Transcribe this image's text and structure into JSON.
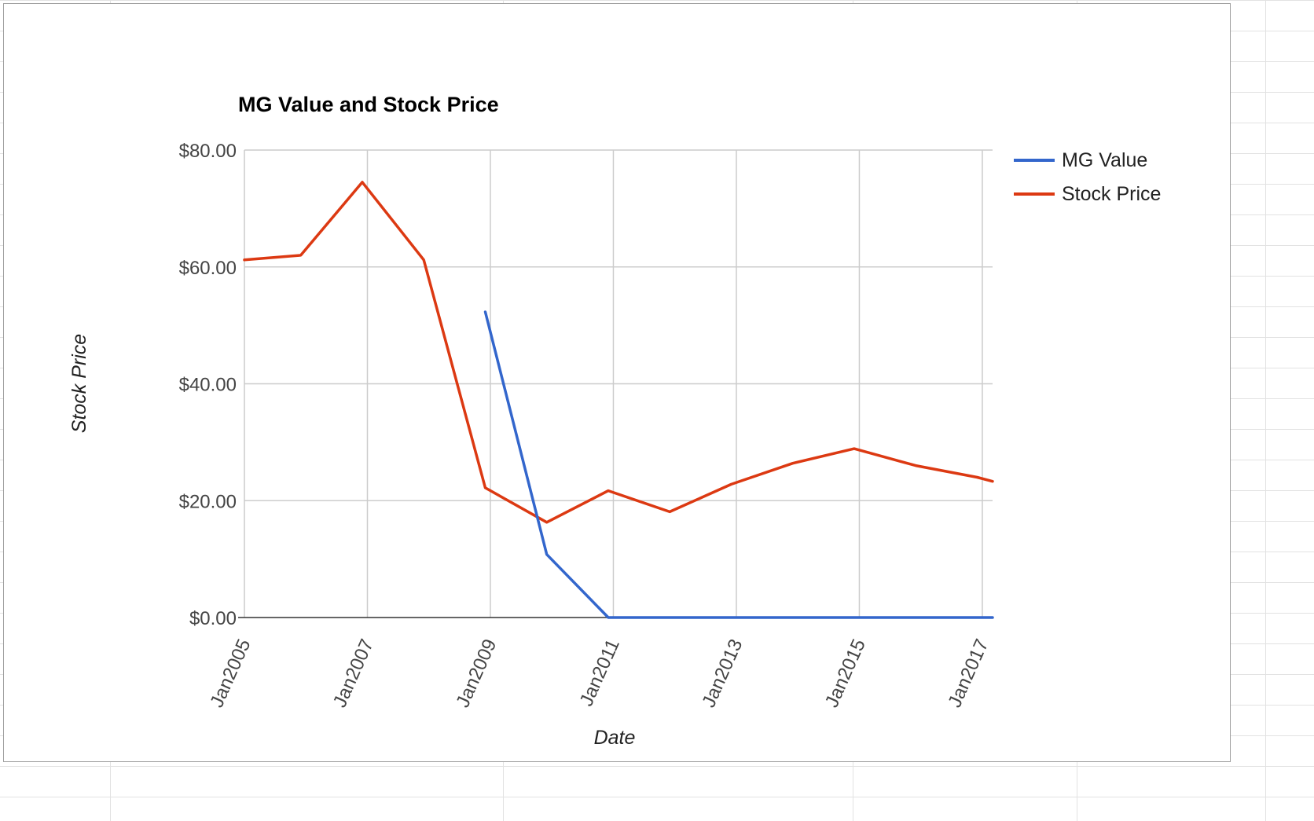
{
  "chart_data": {
    "type": "line",
    "title": "MG Value and Stock Price",
    "xlabel": "Date",
    "ylabel": "Stock Price",
    "ylim": [
      0,
      80
    ],
    "yticks": [
      0,
      20,
      40,
      60,
      80
    ],
    "ytick_labels": [
      "$0.00",
      "$20.00",
      "$40.00",
      "$60.00",
      "$80.00"
    ],
    "xlim": [
      "2005-01",
      "2017-03"
    ],
    "xticks": [
      "2005-01",
      "2007-01",
      "2009-01",
      "2011-01",
      "2013-01",
      "2015-01",
      "2017-01"
    ],
    "xtick_labels": [
      "Jan2005",
      "Jan2007",
      "Jan2009",
      "Jan2011",
      "Jan2013",
      "Jan2015",
      "Jan2017"
    ],
    "grid": true,
    "legend_position": "right",
    "series": [
      {
        "name": "MG Value",
        "color": "#3366cc",
        "x": [
          "2008-12",
          "2009-12",
          "2010-12",
          "2011-12",
          "2012-12",
          "2013-12",
          "2014-12",
          "2015-12",
          "2016-12",
          "2017-03"
        ],
        "y": [
          52.3,
          10.8,
          0,
          0,
          0,
          0,
          0,
          0,
          0,
          0
        ]
      },
      {
        "name": "Stock Price",
        "color": "#dc3912",
        "x": [
          "2005-01",
          "2005-12",
          "2006-12",
          "2007-12",
          "2008-12",
          "2009-12",
          "2010-12",
          "2011-12",
          "2012-12",
          "2013-12",
          "2014-12",
          "2015-12",
          "2016-12",
          "2017-03"
        ],
        "y": [
          61.2,
          62.0,
          74.5,
          61.2,
          22.2,
          16.3,
          21.7,
          18.1,
          22.8,
          26.4,
          28.9,
          26.0,
          24.0,
          23.3
        ]
      }
    ]
  }
}
